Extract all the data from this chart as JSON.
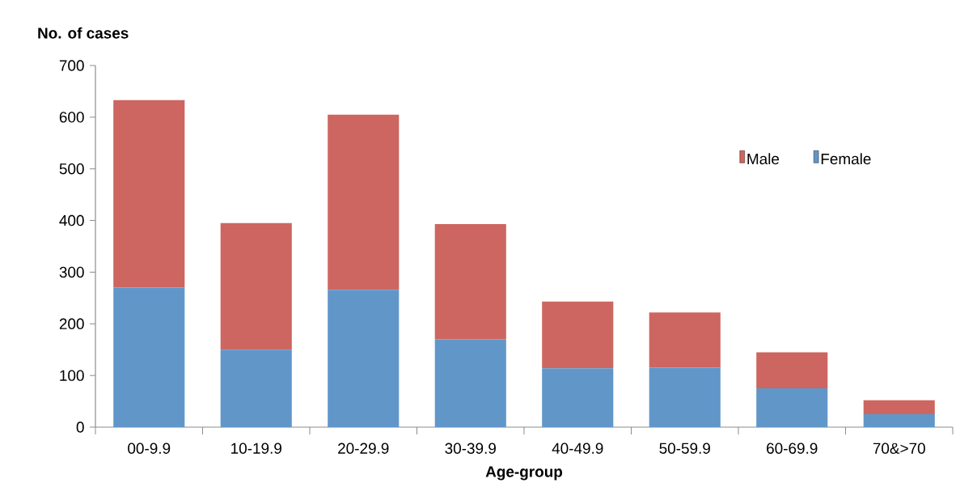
{
  "chart_data": {
    "type": "bar",
    "stacked": true,
    "xlabel": "Age-group",
    "ylabel": "No. of cases",
    "categories": [
      "00-9.9",
      "10-19.9",
      "20-29.9",
      "30-39.9",
      "40-49.9",
      "50-59.9",
      "60-69.9",
      "70&>70"
    ],
    "series": [
      {
        "name": "Female",
        "color": "#6196c9",
        "values": [
          270,
          150,
          266,
          170,
          114,
          115,
          75,
          25
        ]
      },
      {
        "name": "Male",
        "color": "#cd6660",
        "values": [
          363,
          245,
          339,
          223,
          129,
          107,
          70,
          27
        ]
      }
    ],
    "ylim": [
      0,
      700
    ],
    "yticks": [
      0,
      100,
      200,
      300,
      400,
      500,
      600,
      700
    ],
    "grid": false,
    "legend": "top right"
  }
}
